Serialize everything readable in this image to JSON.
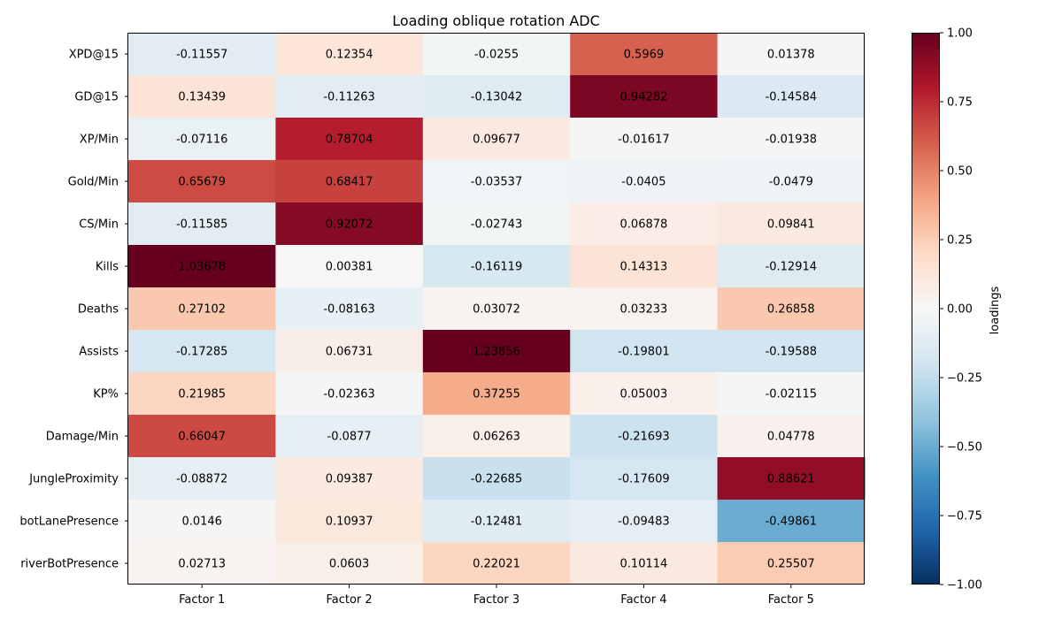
{
  "chart_data": {
    "type": "heatmap",
    "title": "Loading oblique rotation ADC",
    "x_categories": [
      "Factor 1",
      "Factor 2",
      "Factor 3",
      "Factor 4",
      "Factor 5"
    ],
    "y_categories": [
      "XPD@15",
      "GD@15",
      "XP/Min",
      "Gold/Min",
      "CS/Min",
      "Kills",
      "Deaths",
      "Assists",
      "KP%",
      "Damage/Min",
      "JungleProximity",
      "botLanePresence",
      "riverBotPresence"
    ],
    "values": [
      [
        -0.11557,
        0.12354,
        -0.0255,
        0.5969,
        0.01378
      ],
      [
        0.13439,
        -0.11263,
        -0.13042,
        0.94282,
        -0.14584
      ],
      [
        -0.07116,
        0.78704,
        0.09677,
        -0.01617,
        -0.01938
      ],
      [
        0.65679,
        0.68417,
        -0.03537,
        -0.0405,
        -0.0479
      ],
      [
        -0.11585,
        0.92072,
        -0.02743,
        0.06878,
        0.09841
      ],
      [
        1.03678,
        0.00381,
        -0.16119,
        0.14313,
        -0.12914
      ],
      [
        0.27102,
        -0.08163,
        0.03072,
        0.03233,
        0.26858
      ],
      [
        -0.17285,
        0.06731,
        1.23856,
        -0.19801,
        -0.19588
      ],
      [
        0.21985,
        -0.02363,
        0.37255,
        0.05003,
        -0.02115
      ],
      [
        0.66047,
        -0.0877,
        0.06263,
        -0.21693,
        0.04778
      ],
      [
        -0.08872,
        0.09387,
        -0.22685,
        -0.17609,
        0.88621
      ],
      [
        0.0146,
        0.10937,
        -0.12481,
        -0.09483,
        -0.49861
      ],
      [
        0.02713,
        0.0603,
        0.22021,
        0.10114,
        0.25507
      ]
    ],
    "value_labels": [
      [
        "-0.11557",
        "0.12354",
        "-0.0255",
        "0.5969",
        "0.01378"
      ],
      [
        "0.13439",
        "-0.11263",
        "-0.13042",
        "0.94282",
        "-0.14584"
      ],
      [
        "-0.07116",
        "0.78704",
        "0.09677",
        "-0.01617",
        "-0.01938"
      ],
      [
        "0.65679",
        "0.68417",
        "-0.03537",
        "-0.0405",
        "-0.0479"
      ],
      [
        "-0.11585",
        "0.92072",
        "-0.02743",
        "0.06878",
        "0.09841"
      ],
      [
        "1.03678",
        "0.00381",
        "-0.16119",
        "0.14313",
        "-0.12914"
      ],
      [
        "0.27102",
        "-0.08163",
        "0.03072",
        "0.03233",
        "0.26858"
      ],
      [
        "-0.17285",
        "0.06731",
        "1.23856",
        "-0.19801",
        "-0.19588"
      ],
      [
        "0.21985",
        "-0.02363",
        "0.37255",
        "0.05003",
        "-0.02115"
      ],
      [
        "0.66047",
        "-0.0877",
        "0.06263",
        "-0.21693",
        "0.04778"
      ],
      [
        "-0.08872",
        "0.09387",
        "-0.22685",
        "-0.17609",
        "0.88621"
      ],
      [
        "0.0146",
        "0.10937",
        "-0.12481",
        "-0.09483",
        "-0.49861"
      ],
      [
        "0.02713",
        "0.0603",
        "0.22021",
        "0.10114",
        "0.25507"
      ]
    ],
    "colormap": "RdBu_r",
    "vmin": -1.0,
    "vmax": 1.0,
    "colorbar": {
      "label": "loadings",
      "ticks": [
        1.0,
        0.75,
        0.5,
        0.25,
        0.0,
        -0.25,
        -0.5,
        -0.75,
        -1.0
      ],
      "tick_labels": [
        "1.00",
        "0.75",
        "0.50",
        "0.25",
        "0.00",
        "−0.25",
        "−0.50",
        "−0.75",
        "−1.00"
      ]
    },
    "grid": false,
    "legend": "colorbar-right"
  }
}
